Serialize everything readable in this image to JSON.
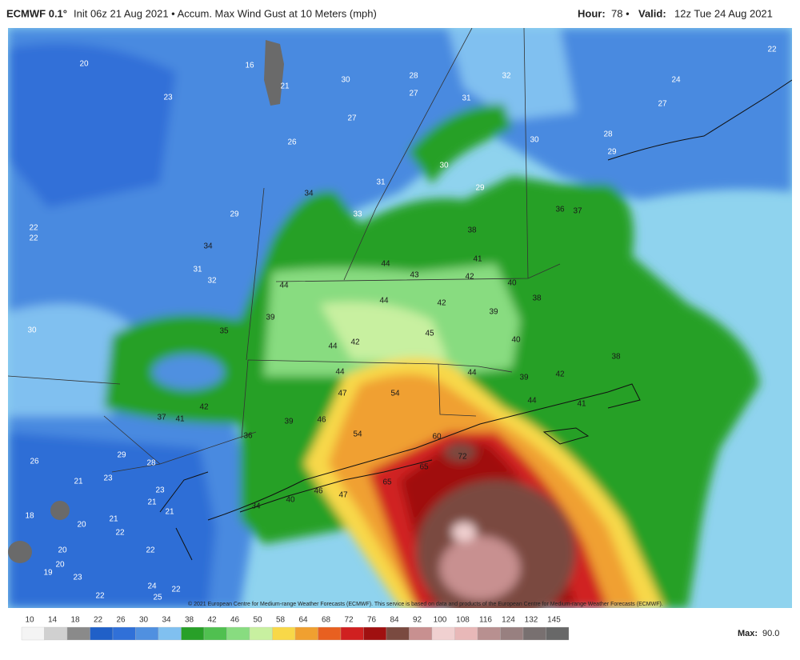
{
  "header": {
    "model": "ECMWF 0.1°",
    "description": "Init 06z 21 Aug 2021 • Accum. Max Wind Gust at 10 Meters (mph)",
    "hour_label": "Hour:",
    "hour": "78 •",
    "valid_label": "Valid:",
    "valid": "12z Tue 24 Aug 2021"
  },
  "map_labels": [
    20,
    23,
    16,
    21,
    30,
    28,
    27,
    32,
    31,
    27,
    26,
    22,
    24,
    27,
    28,
    29,
    30,
    30,
    29,
    31,
    34,
    33,
    29,
    22,
    22,
    34,
    31,
    32,
    38,
    36,
    37,
    44,
    43,
    41,
    42,
    40,
    44,
    44,
    42,
    39,
    38,
    30,
    35,
    39,
    45,
    44,
    42,
    40,
    38,
    44,
    44,
    39,
    42,
    47,
    54,
    42,
    37,
    41,
    39,
    46,
    44,
    41,
    36,
    54,
    60,
    29,
    28,
    72,
    26,
    23,
    21,
    65,
    65,
    23,
    21,
    21,
    46,
    40,
    47,
    34,
    18,
    20,
    21,
    22,
    22,
    20,
    20,
    19,
    23,
    24,
    22,
    22,
    25
  ],
  "copyright": "© 2021 European Centre for Medium-range Weather Forecasts (ECMWF). This service is based on data and products of the European Centre for Medium-range Weather Forecasts (ECMWF).",
  "colorbar": {
    "ticks": [
      10,
      14,
      18,
      22,
      26,
      30,
      34,
      38,
      42,
      46,
      50,
      58,
      64,
      68,
      72,
      76,
      84,
      92,
      100,
      108,
      116,
      124,
      132,
      145
    ],
    "colors": [
      "#f4f4f4",
      "#d0d0d0",
      "#8a8a8a",
      "#2060c8",
      "#3070d8",
      "#5090e0",
      "#80c0f0",
      "#28a028",
      "#50c050",
      "#88dc80",
      "#c8f0a0",
      "#f8d848",
      "#f0a030",
      "#e86020",
      "#d02020",
      "#a01010",
      "#7a4a40",
      "#c89090",
      "#f0d0d0",
      "#e8b8b8",
      "#b89090",
      "#988080",
      "#787070",
      "#686868"
    ]
  },
  "max": {
    "label": "Max:",
    "value": "90.0"
  }
}
